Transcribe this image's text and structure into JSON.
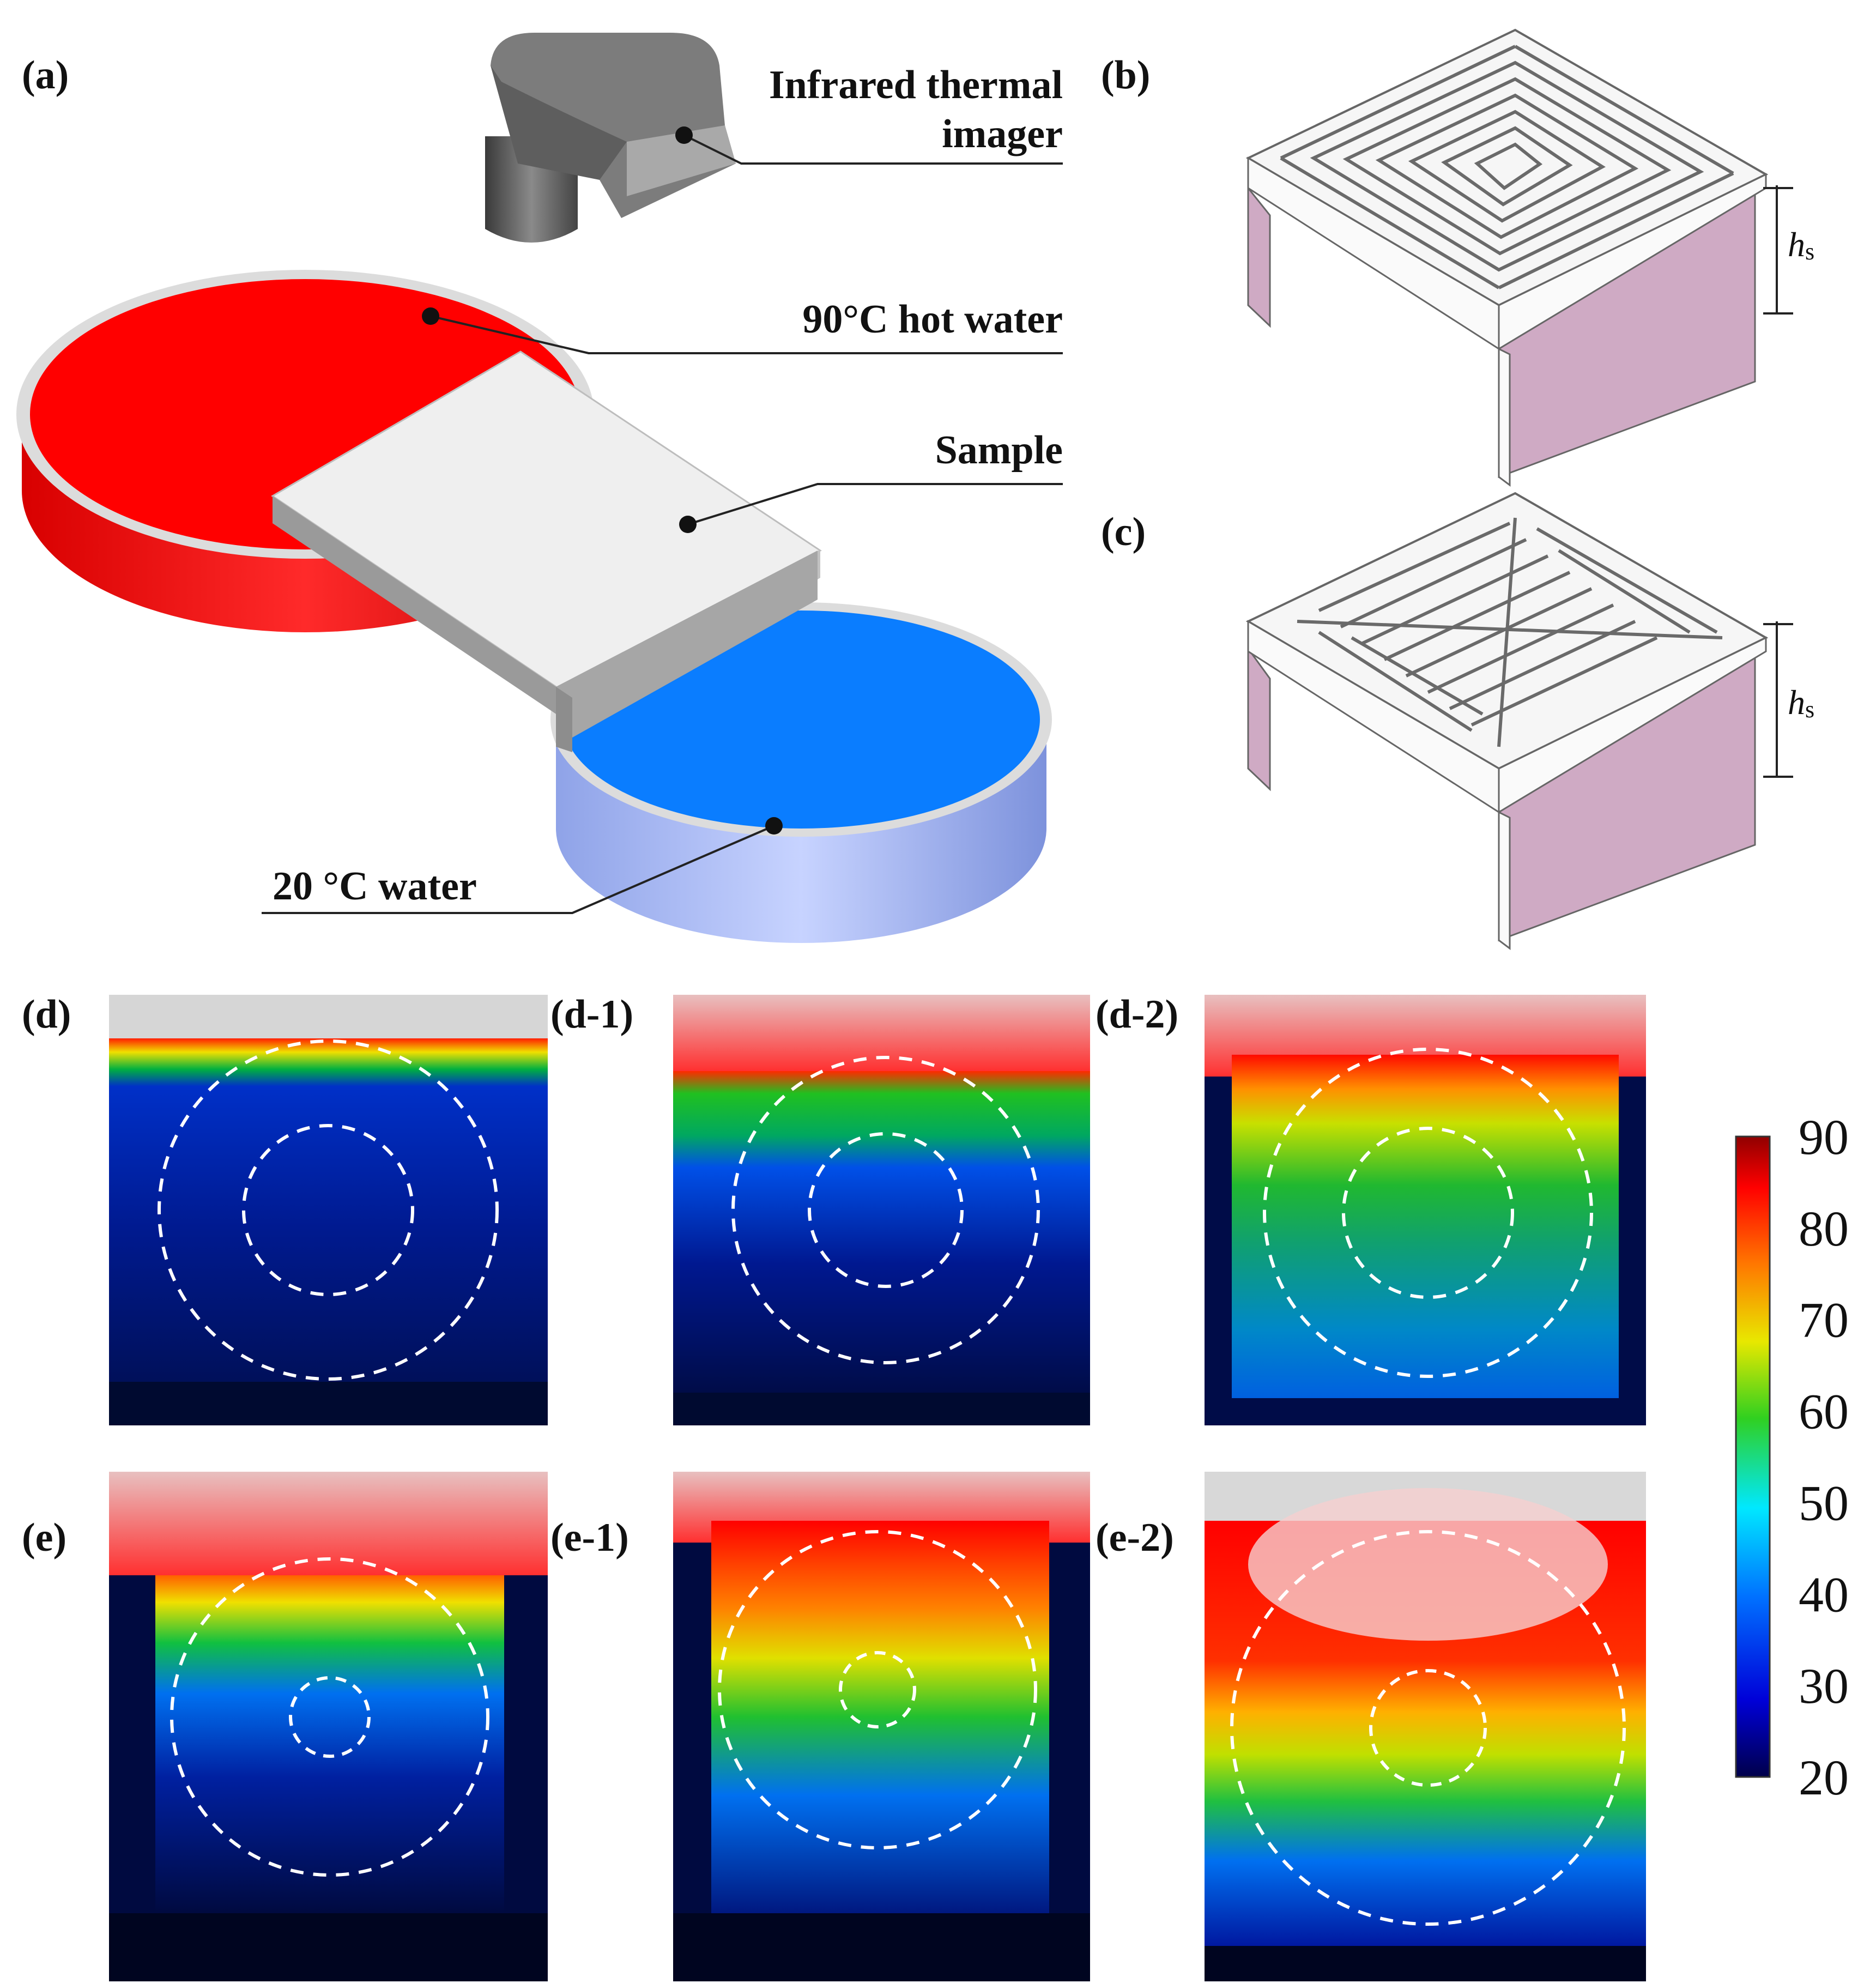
{
  "panels": {
    "a": "(a)",
    "b": "(b)",
    "c": "(c)",
    "d": "(d)",
    "d1": "(d-1)",
    "d2": "(d-2)",
    "e": "(e)",
    "e1": "(e-1)",
    "e2": "(e-2)"
  },
  "setup": {
    "imager_line1": "Infrared thermal",
    "imager_line2": "imager",
    "hot_water": "90°C hot water",
    "sample": "Sample",
    "cold_water": "20 °C water"
  },
  "dimension_label": {
    "symbol": "h",
    "subscript": "s"
  },
  "colorbar": {
    "ticks": [
      "90",
      "80",
      "70",
      "60",
      "50",
      "40",
      "30",
      "20"
    ],
    "min": 20,
    "max": 90,
    "colors": [
      "#00004a",
      "#0000d8",
      "#0070ff",
      "#00e8ff",
      "#30d020",
      "#e8e800",
      "#ff7800",
      "#ff0000",
      "#900000"
    ]
  },
  "colors": {
    "hot_water": "#ff0000",
    "cold_water": "#0a7dff",
    "sample": "#eeeeee",
    "walls": "#c8a8c0"
  }
}
